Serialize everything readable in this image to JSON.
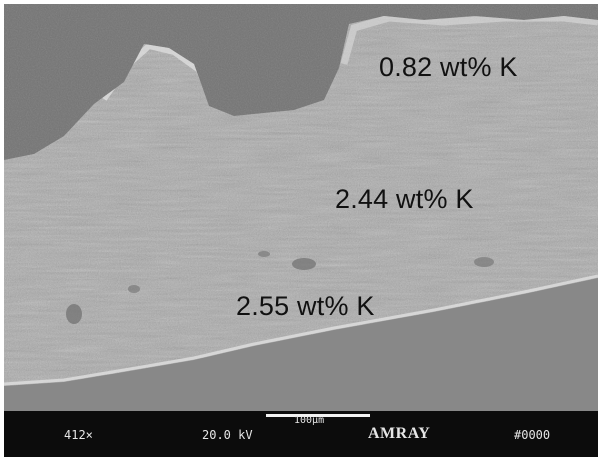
{
  "micrograph": {
    "annotations": [
      {
        "text": "0.82 wt% K"
      },
      {
        "text": "2.44 wt% K"
      },
      {
        "text": "2.55 wt% K"
      }
    ]
  },
  "databar": {
    "magnification": "412×",
    "voltage": "20.0 kV",
    "scale_bar": "100µm",
    "brand": "AMRAY",
    "photo_number": "#0000"
  },
  "colors": {
    "background": "#7a7a7a",
    "surface": "#b3b3b3",
    "databar": "#0c0c0c",
    "text": "#e6e6e6"
  }
}
